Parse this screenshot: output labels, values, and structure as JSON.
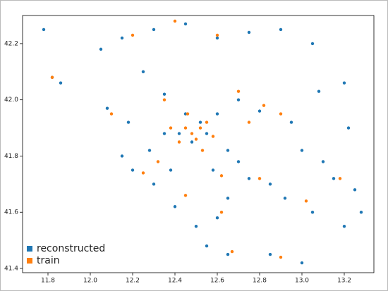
{
  "chart_data": {
    "type": "scatter",
    "xlim": [
      11.68,
      13.34
    ],
    "ylim": [
      41.385,
      42.3
    ],
    "xticks": [
      11.8,
      {
        "value": 12,
        "label": "12.0"
      },
      12.2,
      12.4,
      12.6,
      12.8,
      {
        "value": 13,
        "label": "13.0"
      },
      13.2
    ],
    "yticks": [
      41.4,
      41.6,
      41.8,
      {
        "value": 42,
        "label": "42.0"
      },
      42.2
    ],
    "legend": "lower left",
    "series": [
      {
        "name": "reconstructed",
        "color": "#1f77b4",
        "x": [
          11.78,
          11.82,
          11.86,
          12.05,
          12.15,
          12.3,
          12.45,
          12.6,
          12.75,
          12.9,
          13.05,
          12.08,
          12.18,
          12.25,
          12.35,
          12.45,
          12.55,
          12.48,
          12.6,
          12.7,
          12.8,
          12.95,
          13.08,
          13.2,
          13.22,
          13.0,
          13.1,
          13.15,
          13.25,
          13.28,
          13.2,
          13.05,
          12.92,
          12.85,
          12.75,
          12.65,
          12.6,
          12.5,
          12.4,
          12.3,
          12.2,
          12.15,
          12.38,
          12.55,
          12.65,
          12.85,
          13.0,
          12.7,
          12.42,
          12.52,
          12.35,
          12.65,
          12.28,
          12.58
        ],
        "y": [
          42.25,
          42.08,
          42.06,
          42.18,
          42.22,
          42.25,
          42.27,
          42.22,
          42.24,
          42.25,
          42.2,
          41.97,
          41.92,
          42.1,
          42.02,
          41.95,
          41.88,
          41.85,
          41.95,
          42.0,
          41.96,
          41.92,
          42.03,
          42.06,
          41.9,
          41.82,
          41.78,
          41.72,
          41.68,
          41.6,
          41.55,
          41.6,
          41.65,
          41.7,
          41.72,
          41.65,
          41.58,
          41.55,
          41.62,
          41.7,
          41.75,
          41.8,
          41.75,
          41.48,
          41.45,
          41.45,
          41.42,
          41.78,
          41.88,
          41.92,
          41.88,
          41.82,
          41.82,
          41.75
        ]
      },
      {
        "name": "train",
        "color": "#ff7f0e",
        "x": [
          11.82,
          12.2,
          12.4,
          12.6,
          12.45,
          12.48,
          12.52,
          12.5,
          12.55,
          12.42,
          12.46,
          12.53,
          12.38,
          12.58,
          12.32,
          12.25,
          12.62,
          12.62,
          12.8,
          12.9,
          12.67,
          12.45,
          12.75,
          12.9,
          13.02,
          13.18,
          12.1,
          12.7,
          12.82,
          12.35
        ],
        "y": [
          42.08,
          42.23,
          42.28,
          42.23,
          41.9,
          41.88,
          41.9,
          41.86,
          41.92,
          41.85,
          41.95,
          41.82,
          41.9,
          41.87,
          41.78,
          41.74,
          41.6,
          41.73,
          41.72,
          41.44,
          41.46,
          41.66,
          41.92,
          41.95,
          41.64,
          41.72,
          41.95,
          42.03,
          41.98,
          42.0
        ]
      }
    ]
  }
}
